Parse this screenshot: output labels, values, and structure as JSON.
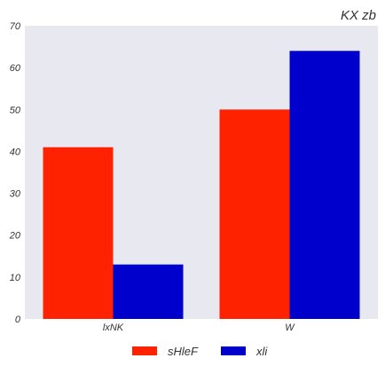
{
  "chart_data": {
    "type": "bar",
    "title": "KX zb",
    "xlabel": "",
    "ylabel": "",
    "categories": [
      "lxNK",
      "W"
    ],
    "series": [
      {
        "name": "sHleF",
        "values": [
          41,
          50
        ],
        "color": "#ff2200"
      },
      {
        "name": "xli",
        "values": [
          13,
          64
        ],
        "color": "#0000cc"
      }
    ],
    "ylim": [
      0,
      70
    ],
    "yticks": [
      0,
      10,
      20,
      30,
      40,
      50,
      60,
      70
    ],
    "grid": false,
    "background": "#e8e8f0",
    "legend_position": "bottom-center"
  }
}
